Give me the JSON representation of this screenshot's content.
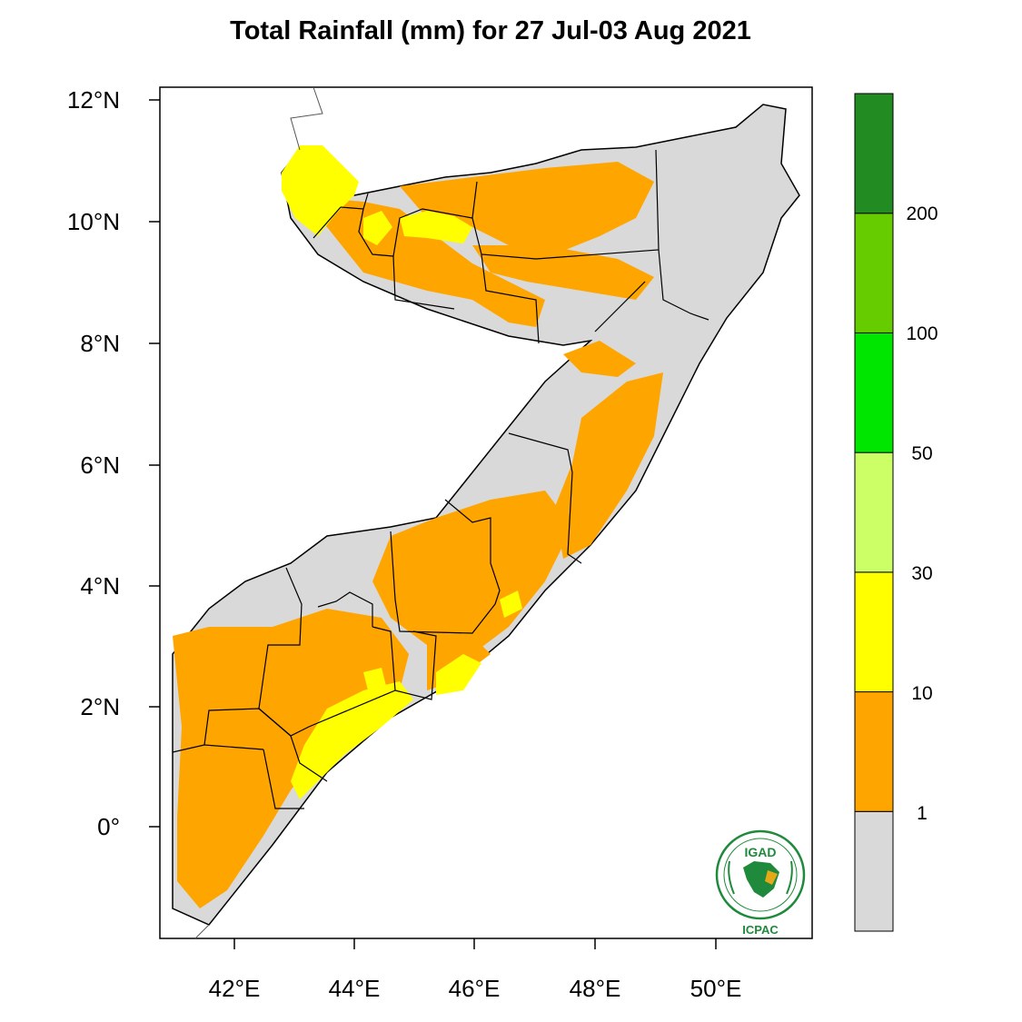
{
  "title": "Total Rainfall (mm) for 27 Jul-03 Aug 2021",
  "axes": {
    "x_ticks": [
      "42°E",
      "44°E",
      "46°E",
      "48°E",
      "50°E"
    ],
    "y_ticks": [
      "12°N",
      "10°N",
      "8°N",
      "6°N",
      "4°N",
      "2°N",
      "0°"
    ]
  },
  "colorbar": {
    "labels": [
      "1",
      "10",
      "30",
      "50",
      "100",
      "200"
    ],
    "colors": [
      "#d9d9d9",
      "#ffa500",
      "#ffff00",
      "#ccff66",
      "#00e600",
      "#66cc00",
      "#228b22"
    ]
  },
  "logo": {
    "top": "IGAD",
    "bottom": "ICPAC"
  }
}
